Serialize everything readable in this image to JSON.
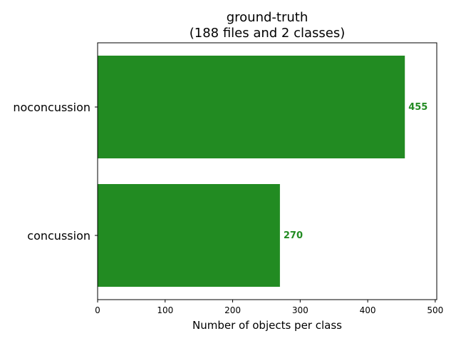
{
  "chart_data": {
    "type": "bar",
    "orientation": "horizontal",
    "title": "ground-truth",
    "subtitle": "(188 files and 2 classes)",
    "xlabel": "Number of objects per class",
    "ylabel": "",
    "categories": [
      "concussion",
      "noconcussion"
    ],
    "values": [
      270,
      455
    ],
    "data_labels": [
      "270",
      "455"
    ],
    "xlim": [
      0,
      500
    ],
    "x_ticks": [
      0,
      100,
      200,
      300,
      400,
      500
    ],
    "x_tick_labels": [
      "0",
      "100",
      "200",
      "300",
      "400",
      "500"
    ],
    "grid": false,
    "legend": "none",
    "bar_color": "#228b22",
    "label_color": "#228b22"
  }
}
